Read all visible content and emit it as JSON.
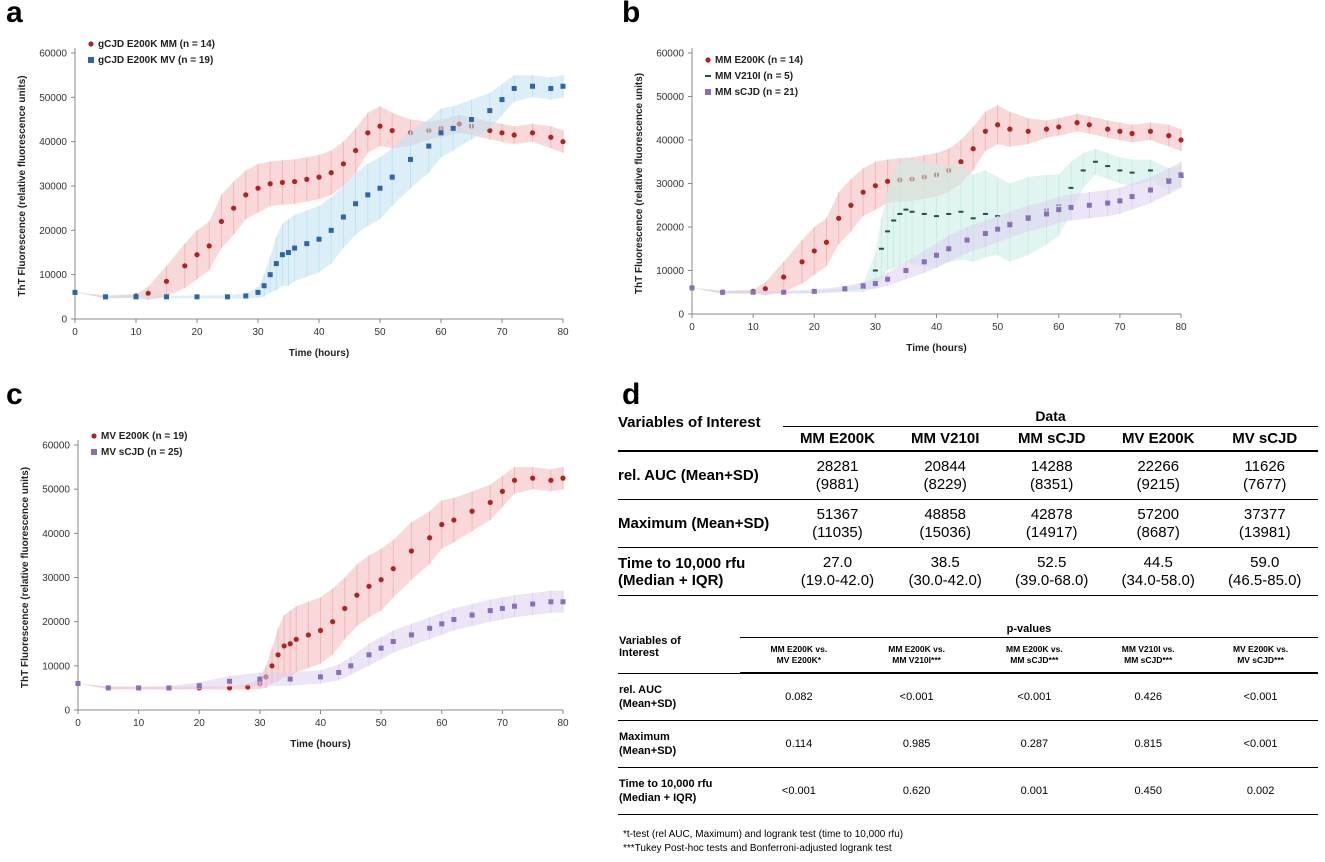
{
  "panels": {
    "a": "a",
    "b": "b",
    "c": "c",
    "d": "d"
  },
  "chart_data": [
    {
      "id": "a",
      "type": "line",
      "xlabel": "Time (hours)",
      "ylabel": "ThT Fluorescence (relative fluorescence units)",
      "xlim": [
        0,
        80
      ],
      "ylim": [
        0,
        60000
      ],
      "xticks": [
        0,
        10,
        20,
        30,
        40,
        50,
        60,
        70,
        80
      ],
      "yticks": [
        0,
        10000,
        20000,
        30000,
        40000,
        50000,
        60000
      ],
      "legend": "top-left",
      "series": [
        {
          "name": "gCJD E200K MM (n = 14)",
          "color": "#b22222",
          "band": "#f2b8b8",
          "marker": "circle",
          "x": [
            0,
            5,
            10,
            12,
            15,
            18,
            20,
            22,
            24,
            26,
            28,
            30,
            32,
            34,
            36,
            38,
            40,
            42,
            44,
            46,
            48,
            50,
            52,
            55,
            58,
            60,
            63,
            65,
            68,
            70,
            72,
            75,
            78,
            80
          ],
          "y": [
            6000,
            5000,
            5200,
            5800,
            8500,
            12000,
            14500,
            16500,
            22000,
            25000,
            28000,
            29500,
            30500,
            30800,
            31000,
            31500,
            32000,
            33000,
            35000,
            38000,
            42000,
            43500,
            42500,
            42000,
            42500,
            43000,
            44000,
            43500,
            42500,
            42000,
            41500,
            42000,
            41000,
            40000
          ],
          "err": [
            0,
            300,
            400,
            1500,
            3500,
            5000,
            5500,
            5500,
            6000,
            6000,
            5500,
            5500,
            5000,
            5000,
            5000,
            5000,
            5000,
            5000,
            5000,
            5000,
            4500,
            4500,
            4000,
            3000,
            2000,
            2000,
            2000,
            2000,
            2000,
            2000,
            2000,
            2000,
            2500,
            2500
          ]
        },
        {
          "name": "gCJD E200K MV (n = 19)",
          "color": "#2e64a8",
          "band": "#bfe2f2",
          "marker": "square",
          "x": [
            0,
            5,
            10,
            15,
            20,
            25,
            28,
            30,
            31,
            32,
            33,
            34,
            35,
            36,
            38,
            40,
            42,
            44,
            46,
            48,
            50,
            52,
            55,
            58,
            60,
            62,
            65,
            68,
            70,
            72,
            75,
            78,
            80
          ],
          "y": [
            6000,
            5000,
            5000,
            5000,
            5000,
            5000,
            5200,
            6000,
            7500,
            10000,
            12500,
            14500,
            15000,
            16000,
            17000,
            18000,
            20000,
            23000,
            26000,
            28000,
            29500,
            32000,
            36000,
            39000,
            42000,
            43000,
            45000,
            47000,
            49500,
            52000,
            52500,
            52000,
            52500
          ],
          "err": [
            0,
            300,
            300,
            300,
            300,
            400,
            600,
            1200,
            2500,
            4000,
            6000,
            7000,
            7500,
            7500,
            7500,
            7500,
            7500,
            7000,
            7000,
            7000,
            7000,
            6500,
            6500,
            6000,
            5500,
            5000,
            4500,
            4000,
            3500,
            3000,
            2500,
            2500,
            2500
          ]
        }
      ]
    },
    {
      "id": "b",
      "type": "line",
      "xlabel": "Time (hours)",
      "ylabel": "ThT Fluorescence (relative fluorescence units)",
      "xlim": [
        0,
        80
      ],
      "ylim": [
        0,
        60000
      ],
      "xticks": [
        0,
        10,
        20,
        30,
        40,
        50,
        60,
        70,
        80
      ],
      "yticks": [
        0,
        10000,
        20000,
        30000,
        40000,
        50000,
        60000
      ],
      "legend": "top-left",
      "series": [
        {
          "name": "MM E200K (n = 14)",
          "color": "#b22222",
          "band": "#f2b8b8",
          "marker": "circle",
          "x": [
            0,
            5,
            10,
            12,
            15,
            18,
            20,
            22,
            24,
            26,
            28,
            30,
            32,
            34,
            36,
            38,
            40,
            42,
            44,
            46,
            48,
            50,
            52,
            55,
            58,
            60,
            63,
            65,
            68,
            70,
            72,
            75,
            78,
            80
          ],
          "y": [
            6000,
            5000,
            5200,
            5800,
            8500,
            12000,
            14500,
            16500,
            22000,
            25000,
            28000,
            29500,
            30500,
            30800,
            31000,
            31500,
            32000,
            33000,
            35000,
            38000,
            42000,
            43500,
            42500,
            42000,
            42500,
            43000,
            44000,
            43500,
            42500,
            42000,
            41500,
            42000,
            41000,
            40000
          ],
          "err": [
            0,
            300,
            400,
            1500,
            3500,
            5000,
            5500,
            5500,
            6000,
            6000,
            5500,
            5500,
            5000,
            5000,
            5000,
            5000,
            5000,
            5000,
            5000,
            5000,
            4500,
            4500,
            4000,
            3000,
            2000,
            2000,
            2000,
            2000,
            2000,
            2000,
            2000,
            2000,
            2500,
            2500
          ]
        },
        {
          "name": "MM V210I (n = 5)",
          "color": "#1f4f4f",
          "band": "#c8ece4",
          "marker": "dash",
          "x": [
            0,
            5,
            10,
            15,
            20,
            25,
            28,
            30,
            31,
            32,
            33,
            34,
            35,
            36,
            38,
            40,
            42,
            44,
            46,
            48,
            50,
            52,
            55,
            58,
            60,
            62,
            64,
            66,
            68,
            70,
            72,
            75,
            78,
            80
          ],
          "y": [
            6000,
            5000,
            5000,
            5000,
            5000,
            5500,
            6000,
            10000,
            15000,
            19000,
            21500,
            23000,
            24000,
            23500,
            23000,
            22500,
            23000,
            23500,
            22000,
            23000,
            22500,
            21000,
            22500,
            24000,
            25000,
            29000,
            33000,
            35000,
            34000,
            33000,
            32500,
            33000,
            31000,
            31500
          ],
          "err": [
            0,
            300,
            300,
            300,
            300,
            500,
            1000,
            4000,
            7000,
            9000,
            11000,
            12000,
            12000,
            12000,
            12000,
            12000,
            11000,
            11000,
            10000,
            10000,
            9000,
            9000,
            9000,
            8000,
            7000,
            6000,
            4000,
            3000,
            3000,
            3000,
            3000,
            2500,
            2500,
            2500
          ]
        },
        {
          "name": "MM sCJD (n = 21)",
          "color": "#8a6fb5",
          "band": "#dcd0ee",
          "marker": "square",
          "x": [
            0,
            5,
            10,
            15,
            20,
            25,
            28,
            30,
            32,
            35,
            38,
            40,
            42,
            45,
            48,
            50,
            52,
            55,
            58,
            60,
            62,
            65,
            68,
            70,
            72,
            75,
            78,
            80
          ],
          "y": [
            6000,
            5000,
            5000,
            5000,
            5200,
            5800,
            6500,
            7000,
            8000,
            10000,
            12000,
            13500,
            15000,
            17000,
            18500,
            19500,
            20500,
            22000,
            23000,
            24000,
            24500,
            25000,
            25500,
            26000,
            27000,
            28500,
            30500,
            32000
          ],
          "err": [
            0,
            300,
            300,
            300,
            400,
            600,
            800,
            1200,
            1500,
            2000,
            2500,
            2800,
            3000,
            3000,
            3000,
            3000,
            3000,
            3000,
            3000,
            3000,
            3000,
            3000,
            3000,
            3000,
            3000,
            3000,
            3000,
            3000
          ]
        }
      ]
    },
    {
      "id": "c",
      "type": "line",
      "xlabel": "Time (hours)",
      "ylabel": "ThT Fluorescence (relative fluorescence units)",
      "xlim": [
        0,
        80
      ],
      "ylim": [
        0,
        60000
      ],
      "xticks": [
        0,
        10,
        20,
        30,
        40,
        50,
        60,
        70,
        80
      ],
      "yticks": [
        0,
        10000,
        20000,
        30000,
        40000,
        50000,
        60000
      ],
      "legend": "top-left",
      "series": [
        {
          "name": "MV E200K (n = 19)",
          "color": "#b22222",
          "band": "#f2b8b8",
          "marker": "circle",
          "x": [
            0,
            5,
            10,
            15,
            20,
            25,
            28,
            30,
            31,
            32,
            33,
            34,
            35,
            36,
            38,
            40,
            42,
            44,
            46,
            48,
            50,
            52,
            55,
            58,
            60,
            62,
            65,
            68,
            70,
            72,
            75,
            78,
            80
          ],
          "y": [
            6000,
            5000,
            5000,
            5000,
            5000,
            5000,
            5200,
            6000,
            7500,
            10000,
            12500,
            14500,
            15000,
            16000,
            17000,
            18000,
            20000,
            23000,
            26000,
            28000,
            29500,
            32000,
            36000,
            39000,
            42000,
            43000,
            45000,
            47000,
            49500,
            52000,
            52500,
            52000,
            52500
          ],
          "err": [
            0,
            300,
            300,
            300,
            300,
            400,
            600,
            1200,
            2500,
            4000,
            6000,
            7000,
            7500,
            7500,
            7500,
            7500,
            7500,
            7000,
            7000,
            7000,
            7000,
            6500,
            6500,
            6000,
            5500,
            5000,
            4500,
            4000,
            3500,
            3000,
            2500,
            2500,
            2500
          ]
        },
        {
          "name": "MV sCJD (n = 25)",
          "color": "#8a6fb5",
          "band": "#dcd0ee",
          "marker": "square",
          "x": [
            0,
            5,
            10,
            15,
            20,
            25,
            30,
            35,
            40,
            43,
            45,
            48,
            50,
            52,
            55,
            58,
            60,
            62,
            65,
            68,
            70,
            72,
            75,
            78,
            80
          ],
          "y": [
            6000,
            5000,
            5000,
            5000,
            5500,
            6500,
            7000,
            7000,
            7500,
            8500,
            10000,
            12500,
            14000,
            15500,
            17000,
            18500,
            19500,
            20500,
            21500,
            22500,
            23000,
            23500,
            24000,
            24500,
            24500
          ],
          "err": [
            0,
            300,
            300,
            400,
            800,
            1200,
            1500,
            1500,
            1500,
            1800,
            2000,
            2500,
            2500,
            2500,
            2500,
            2500,
            2500,
            2500,
            2500,
            2500,
            2500,
            2500,
            2500,
            2500,
            2500
          ]
        }
      ]
    }
  ],
  "data_table": {
    "corner": "Variables of Interest",
    "group_header": "Data",
    "columns": [
      "MM E200K",
      "MM V210I",
      "MM sCJD",
      "MV E200K",
      "MV sCJD"
    ],
    "rows": [
      {
        "label": "rel. AUC (Mean+SD)",
        "values": [
          [
            "28281",
            "(9881)"
          ],
          [
            "20844",
            "(8229)"
          ],
          [
            "14288",
            "(8351)"
          ],
          [
            "22266",
            "(9215)"
          ],
          [
            "11626",
            "(7677)"
          ]
        ]
      },
      {
        "label": "Maximum (Mean+SD)",
        "values": [
          [
            "51367",
            "(11035)"
          ],
          [
            "48858",
            "(15036)"
          ],
          [
            "42878",
            "(14917)"
          ],
          [
            "57200",
            "(8687)"
          ],
          [
            "37377",
            "(13981)"
          ]
        ]
      },
      {
        "label": "Time to 10,000 rfu (Median + IQR)",
        "label_lines": [
          "Time to 10,000 rfu",
          "(Median + IQR)"
        ],
        "values": [
          [
            "27.0",
            "(19.0-42.0)"
          ],
          [
            "38.5",
            "(30.0-42.0)"
          ],
          [
            "52.5",
            "(39.0-68.0)"
          ],
          [
            "44.5",
            "(34.0-58.0)"
          ],
          [
            "59.0",
            "(46.5-85.0)"
          ]
        ]
      }
    ]
  },
  "pvalue_table": {
    "corner_lines": [
      "Variables of",
      "Interest"
    ],
    "group_header": "p-values",
    "columns": [
      [
        "MM E200K vs.",
        "MV E200K*"
      ],
      [
        "MM E200K vs.",
        "MM V210I***"
      ],
      [
        "MM E200K vs.",
        "MM sCJD***"
      ],
      [
        "MM V210I vs.",
        "MM sCJD***"
      ],
      [
        "MV E200K vs.",
        "MV sCJD***"
      ]
    ],
    "rows": [
      {
        "label_lines": [
          "rel. AUC",
          "(Mean+SD)"
        ],
        "values": [
          "0.082",
          "<0.001",
          "<0.001",
          "0.426",
          "<0.001"
        ]
      },
      {
        "label_lines": [
          "Maximum",
          "(Mean+SD)"
        ],
        "values": [
          "0.114",
          "0.985",
          "0.287",
          "0.815",
          "<0.001"
        ]
      },
      {
        "label_lines": [
          "Time to 10,000 rfu",
          "(Median + IQR)"
        ],
        "values": [
          "<0.001",
          "0.620",
          "0.001",
          "0.450",
          "0.002"
        ]
      }
    ]
  },
  "footnotes": [
    "*t-test (rel AUC, Maximum) and logrank test (time to 10,000 rfu)",
    "***Tukey Post-hoc tests and Bonferroni-adjusted logrank test"
  ]
}
